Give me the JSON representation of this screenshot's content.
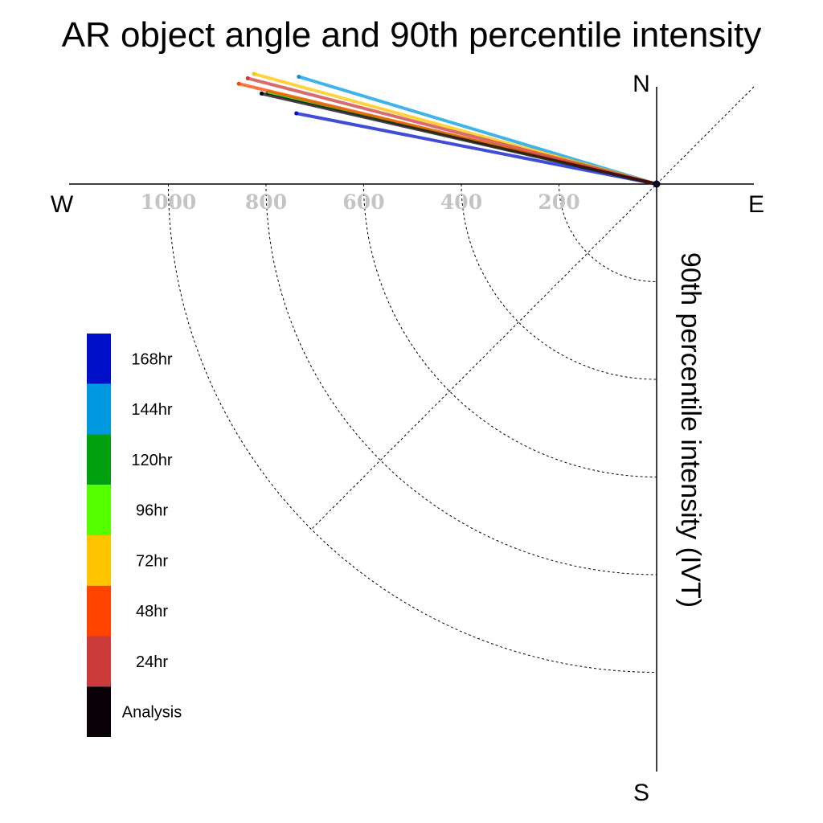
{
  "chart_data": {
    "type": "polar-line",
    "title": "AR object angle and 90th percentile intensity",
    "radial_label": "90th percentile intensity (IVT)",
    "compass": {
      "north": "N",
      "south": "S",
      "east": "E",
      "west": "W"
    },
    "radial_ticks": [
      200,
      400,
      600,
      800,
      1000
    ],
    "radial_tick_labels": [
      "200",
      "400",
      "600",
      "800",
      "1000"
    ],
    "rlim": [
      0,
      1150
    ],
    "grid": true,
    "legend_position": "left",
    "series": [
      {
        "name": "168hr",
        "color": "#0010c8",
        "angle_deg": 191.1,
        "intensity": 752
      },
      {
        "name": "144hr",
        "color": "#0099e0",
        "angle_deg": 196.7,
        "intensity": 765
      },
      {
        "name": "120hr",
        "color": "#00a010",
        "angle_deg": 193.2,
        "intensity": 818
      },
      {
        "name": "96hr",
        "color": "#55ff00",
        "angle_deg": 193.4,
        "intensity": 815
      },
      {
        "name": "72hr",
        "color": "#ffc400",
        "angle_deg": 195.3,
        "intensity": 855
      },
      {
        "name": "48hr",
        "color": "#ff4400",
        "angle_deg": 193.5,
        "intensity": 880
      },
      {
        "name": "24hr",
        "color": "#cc3b3b",
        "angle_deg": 194.5,
        "intensity": 865
      },
      {
        "name": "Analysis",
        "color": "#0a0008",
        "angle_deg": 192.9,
        "intensity": 830
      }
    ],
    "legend": [
      "168hr",
      "144hr",
      "120hr",
      "96hr",
      "72hr",
      "48hr",
      "24hr",
      "Analysis"
    ]
  }
}
